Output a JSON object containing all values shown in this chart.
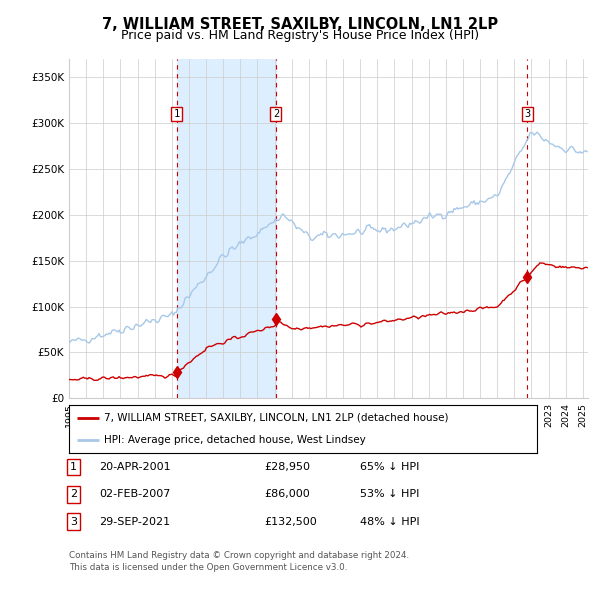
{
  "title": "7, WILLIAM STREET, SAXILBY, LINCOLN, LN1 2LP",
  "subtitle": "Price paid vs. HM Land Registry's House Price Index (HPI)",
  "title_fontsize": 10.5,
  "subtitle_fontsize": 9,
  "hpi_label": "HPI: Average price, detached house, West Lindsey",
  "price_label": "7, WILLIAM STREET, SAXILBY, LINCOLN, LN1 2LP (detached house)",
  "hpi_color": "#a8c8e8",
  "price_color": "#cc0000",
  "marker_color": "#cc0000",
  "sale_dates_num": [
    2001.3,
    2007.08,
    2021.75
  ],
  "sale_prices": [
    28950,
    86000,
    132500
  ],
  "sale_labels": [
    "1",
    "2",
    "3"
  ],
  "sale_date_strs": [
    "20-APR-2001",
    "02-FEB-2007",
    "29-SEP-2021"
  ],
  "sale_pcts": [
    "65% ↓ HPI",
    "53% ↓ HPI",
    "48% ↓ HPI"
  ],
  "sale_price_strs": [
    "£28,950",
    "£86,000",
    "£132,500"
  ],
  "shade_color": "#ddeeff",
  "vline_color": "#cc0000",
  "ylim": [
    0,
    370000
  ],
  "yticks": [
    0,
    50000,
    100000,
    150000,
    200000,
    250000,
    300000,
    350000
  ],
  "ytick_labels": [
    "£0",
    "£50K",
    "£100K",
    "£150K",
    "£200K",
    "£250K",
    "£300K",
    "£350K"
  ],
  "footer1": "Contains HM Land Registry data © Crown copyright and database right 2024.",
  "footer2": "This data is licensed under the Open Government Licence v3.0.",
  "background_color": "#ffffff",
  "grid_color": "#cccccc"
}
